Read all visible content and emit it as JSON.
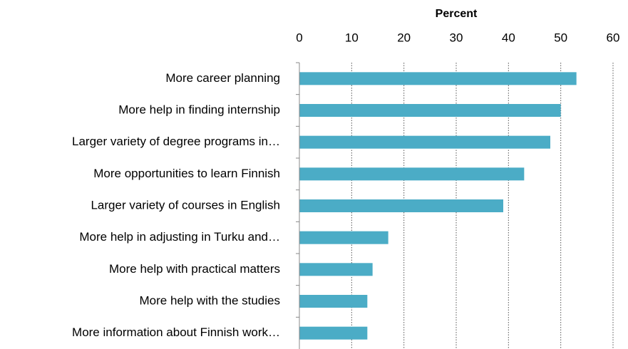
{
  "chart_data": {
    "type": "bar",
    "orientation": "horizontal",
    "x_label": "Percent",
    "categories": [
      "More career planning",
      "More help in finding internship",
      "Larger variety of degree programs in…",
      "More opportunities to learn Finnish",
      "Larger variety of courses in English",
      "More help in adjusting in Turku and…",
      "More help with  practical matters",
      "More help with  the studies",
      "More information about Finnish work…"
    ],
    "values": [
      53,
      50,
      48,
      43,
      39,
      17,
      14,
      13,
      13
    ],
    "color": "#4bacc6",
    "xlim": [
      0,
      60
    ],
    "xticks": [
      0,
      10,
      20,
      30,
      40,
      50,
      60
    ],
    "grid": true
  }
}
